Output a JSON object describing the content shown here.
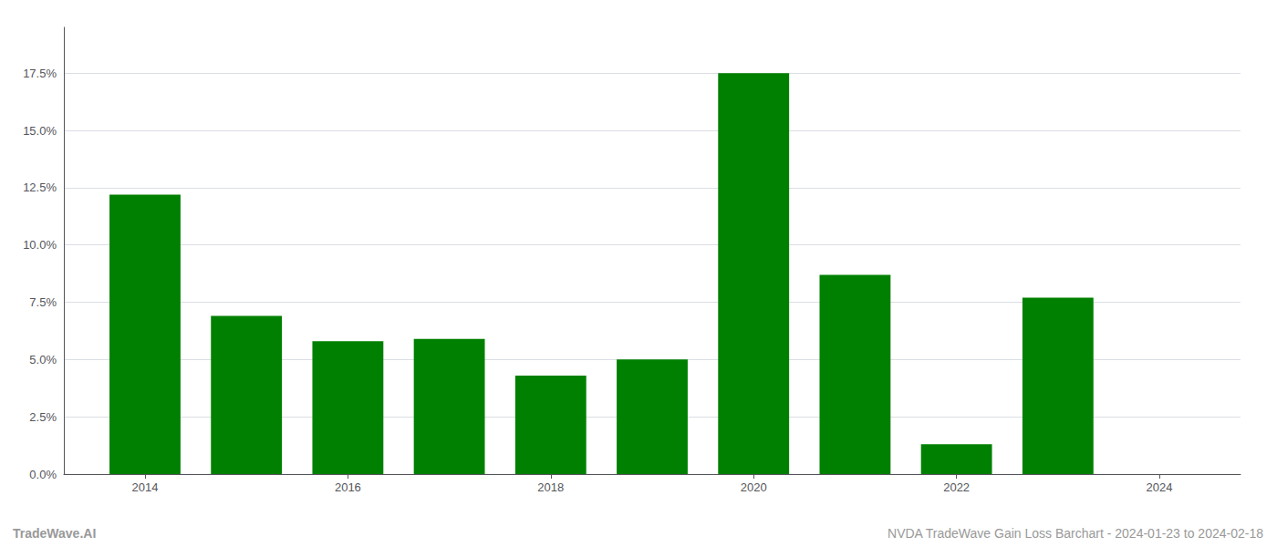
{
  "chart_data": {
    "type": "bar",
    "x": [
      2014,
      2015,
      2016,
      2017,
      2018,
      2019,
      2020,
      2021,
      2022,
      2023,
      2024
    ],
    "values": [
      0.122,
      0.069,
      0.058,
      0.059,
      0.043,
      0.05,
      0.175,
      0.087,
      0.013,
      0.077,
      0.0
    ],
    "color": "#008000",
    "xlim": [
      2013.2,
      2024.8
    ],
    "xticks": [
      2014,
      2016,
      2018,
      2020,
      2022,
      2024
    ],
    "ylim": [
      0,
      0.195
    ],
    "yticks": [
      {
        "value": 0.0,
        "label": "0.0%"
      },
      {
        "value": 0.025,
        "label": "2.5%"
      },
      {
        "value": 0.05,
        "label": "5.0%"
      },
      {
        "value": 0.075,
        "label": "7.5%"
      },
      {
        "value": 0.1,
        "label": "10.0%"
      },
      {
        "value": 0.125,
        "label": "12.5%"
      },
      {
        "value": 0.15,
        "label": "15.0%"
      },
      {
        "value": 0.175,
        "label": "17.5%"
      }
    ],
    "grid": true,
    "annotations": [
      "TradeWave.AI",
      "NVDA TradeWave Gain Loss Barchart - 2024-01-23 to 2024-02-18"
    ]
  }
}
